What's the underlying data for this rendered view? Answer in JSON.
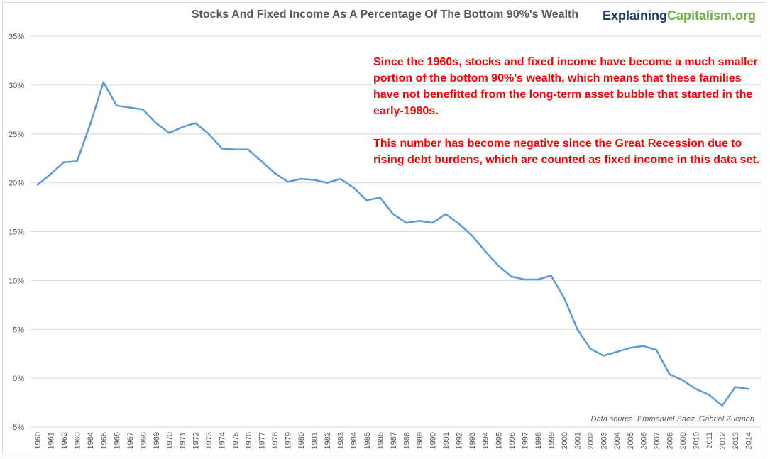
{
  "header": {
    "title": "Stocks And Fixed Income As A Percentage Of The Bottom 90%'s Wealth",
    "brand_part1": "Explaining",
    "brand_part2": "Capitalism.org"
  },
  "annotation": {
    "paragraph1": "Since the 1960s, stocks and fixed income have become a much smaller portion of the bottom 90%'s wealth, which means that these families have not benefitted from the long-term asset bubble that started in the early-1980s.",
    "paragraph2": "This number has become negative since the Great Recession due to rising debt burdens, which are counted as fixed income in this data set."
  },
  "source": "Data source: Emmanuel Saez, Gabriel Zucman",
  "colors": {
    "line": "#5b9bd5",
    "annotation": "#ff0000",
    "brand_dark": "#1f3864",
    "brand_green": "#70ad47",
    "grid": "#d9d9d9"
  },
  "chart_data": {
    "type": "line",
    "title": "Stocks And Fixed Income As A Percentage Of The Bottom 90%'s Wealth",
    "xlabel": "",
    "ylabel": "",
    "ylim": [
      -5,
      35
    ],
    "yticks": [
      -5,
      0,
      5,
      10,
      15,
      20,
      25,
      30,
      35
    ],
    "ytick_labels": [
      "-5%",
      "0%",
      "5%",
      "10%",
      "15%",
      "20%",
      "25%",
      "30%",
      "35%"
    ],
    "grid": "horizontal",
    "x": [
      1960,
      1961,
      1962,
      1963,
      1964,
      1965,
      1966,
      1967,
      1968,
      1969,
      1970,
      1971,
      1972,
      1973,
      1974,
      1975,
      1976,
      1977,
      1978,
      1979,
      1980,
      1981,
      1982,
      1983,
      1984,
      1985,
      1986,
      1987,
      1988,
      1989,
      1990,
      1991,
      1992,
      1993,
      1994,
      1995,
      1996,
      1997,
      1998,
      1999,
      2000,
      2001,
      2002,
      2003,
      2004,
      2005,
      2006,
      2007,
      2008,
      2009,
      2010,
      2011,
      2012,
      2013,
      2014
    ],
    "series": [
      {
        "values": [
          19.8,
          20.9,
          22.1,
          22.2,
          26.0,
          30.3,
          27.9,
          27.7,
          27.5,
          26.1,
          25.1,
          25.7,
          26.1,
          25.0,
          23.5,
          23.4,
          23.4,
          22.2,
          21.0,
          20.1,
          20.4,
          20.3,
          20.0,
          20.4,
          19.5,
          18.2,
          18.5,
          16.8,
          15.9,
          16.1,
          15.9,
          16.8,
          15.8,
          14.6,
          13.0,
          11.5,
          10.4,
          10.1,
          10.1,
          10.5,
          8.2,
          5.0,
          3.0,
          2.3,
          2.7,
          3.1,
          3.3,
          2.9,
          0.4,
          -0.2,
          -1.1,
          -1.7,
          -2.8,
          -0.9,
          -1.1
        ]
      }
    ]
  }
}
